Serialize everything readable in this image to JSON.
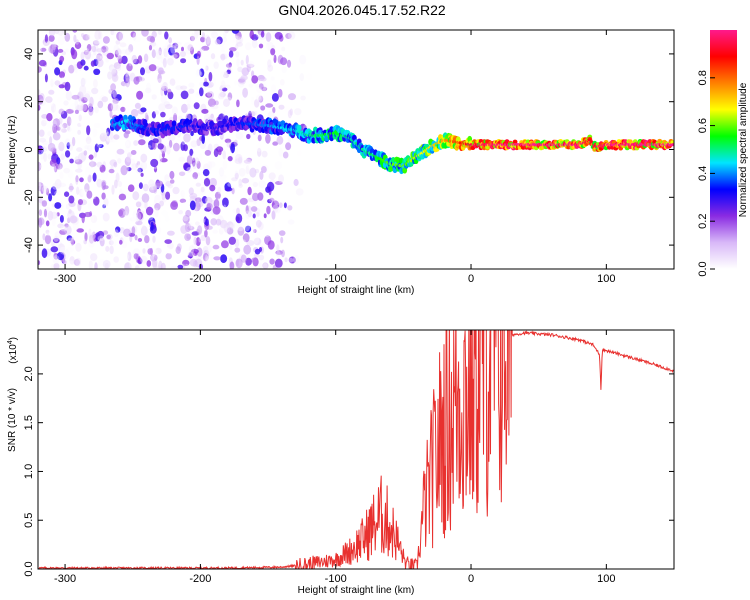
{
  "figure": {
    "title": "GN04.2026.045.17.52.R22"
  },
  "chart_data": [
    {
      "type": "heatmap",
      "name": "spectrogram",
      "title": "",
      "xlabel": "Height of straight line (km)",
      "ylabel": "Frequency (Hz)",
      "xlim": [
        -320,
        150
      ],
      "ylim": [
        -50,
        50
      ],
      "x_ticks": [
        -300,
        -200,
        -100,
        0,
        100
      ],
      "y_ticks": [
        -40,
        -20,
        0,
        20,
        40
      ],
      "colorbar": {
        "label": "Normalized spectral amplitude",
        "range": [
          0,
          1
        ],
        "ticks": [
          "0.0",
          "0.2",
          "0.4",
          "0.6",
          "0.8"
        ],
        "colors": [
          "#ffffff",
          "#d8b8f8",
          "#8a2be2",
          "#0000ff",
          "#00e5ff",
          "#00ff00",
          "#ffff00",
          "#ff8000",
          "#ff0000",
          "#ff1a8c"
        ]
      },
      "ridge": {
        "x": [
          -265,
          -255,
          -240,
          -230,
          -210,
          -190,
          -170,
          -150,
          -140,
          -130,
          -120,
          -110,
          -100,
          -90,
          -80,
          -70,
          -60,
          -50,
          -40,
          -30,
          -20,
          -10,
          0,
          20,
          40,
          60,
          80,
          88,
          92,
          100,
          120,
          150
        ],
        "freq": [
          10,
          12,
          9,
          8,
          10,
          9,
          11,
          10,
          9,
          8,
          6,
          6,
          7,
          5,
          0,
          -3,
          -6,
          -7,
          -3,
          1,
          4,
          3,
          2,
          2,
          2,
          2,
          2,
          4,
          1,
          2,
          2,
          2
        ],
        "amplitude": [
          0.4,
          0.45,
          0.35,
          0.35,
          0.35,
          0.3,
          0.35,
          0.4,
          0.45,
          0.45,
          0.5,
          0.55,
          0.55,
          0.5,
          0.5,
          0.55,
          0.6,
          0.6,
          0.65,
          0.7,
          0.75,
          0.85,
          0.95,
          1.0,
          1.0,
          1.0,
          1.0,
          0.9,
          0.95,
          1.0,
          1.0,
          1.0
        ]
      },
      "noise_region_x": [
        -320,
        -135
      ]
    },
    {
      "type": "line",
      "name": "snr",
      "title": "",
      "xlabel": "Height of straight line (km)",
      "ylabel": "SNR (10 * v/v)",
      "y_multiplier": "(x10",
      "y_multiplier_exp": "4",
      "y_multiplier_close": ")",
      "xlim": [
        -320,
        150
      ],
      "ylim": [
        0,
        2.45
      ],
      "x_ticks": [
        -300,
        -200,
        -100,
        0,
        100
      ],
      "y_ticks": [
        "0.0",
        "0.5",
        "1.0",
        "1.5",
        "2.0"
      ],
      "line_color": "#e8312f",
      "x": [
        -320,
        -250,
        -180,
        -140,
        -125,
        -115,
        -100,
        -90,
        -80,
        -72,
        -66,
        -60,
        -55,
        -48,
        -40,
        -35,
        -30,
        -25,
        -20,
        -15,
        -10,
        -5,
        0,
        5,
        10,
        20,
        30,
        40,
        60,
        80,
        90,
        95,
        96,
        97,
        110,
        130,
        150
      ],
      "snr": [
        0.01,
        0.01,
        0.01,
        0.02,
        0.04,
        0.06,
        0.1,
        0.18,
        0.3,
        0.45,
        0.55,
        0.45,
        0.3,
        0.05,
        0.02,
        0.6,
        0.9,
        1.2,
        1.45,
        1.6,
        1.75,
        1.8,
        1.85,
        2.05,
        2.2,
        2.35,
        2.4,
        2.42,
        2.4,
        2.35,
        2.3,
        2.2,
        1.85,
        2.25,
        2.2,
        2.12,
        2.03
      ]
    }
  ]
}
